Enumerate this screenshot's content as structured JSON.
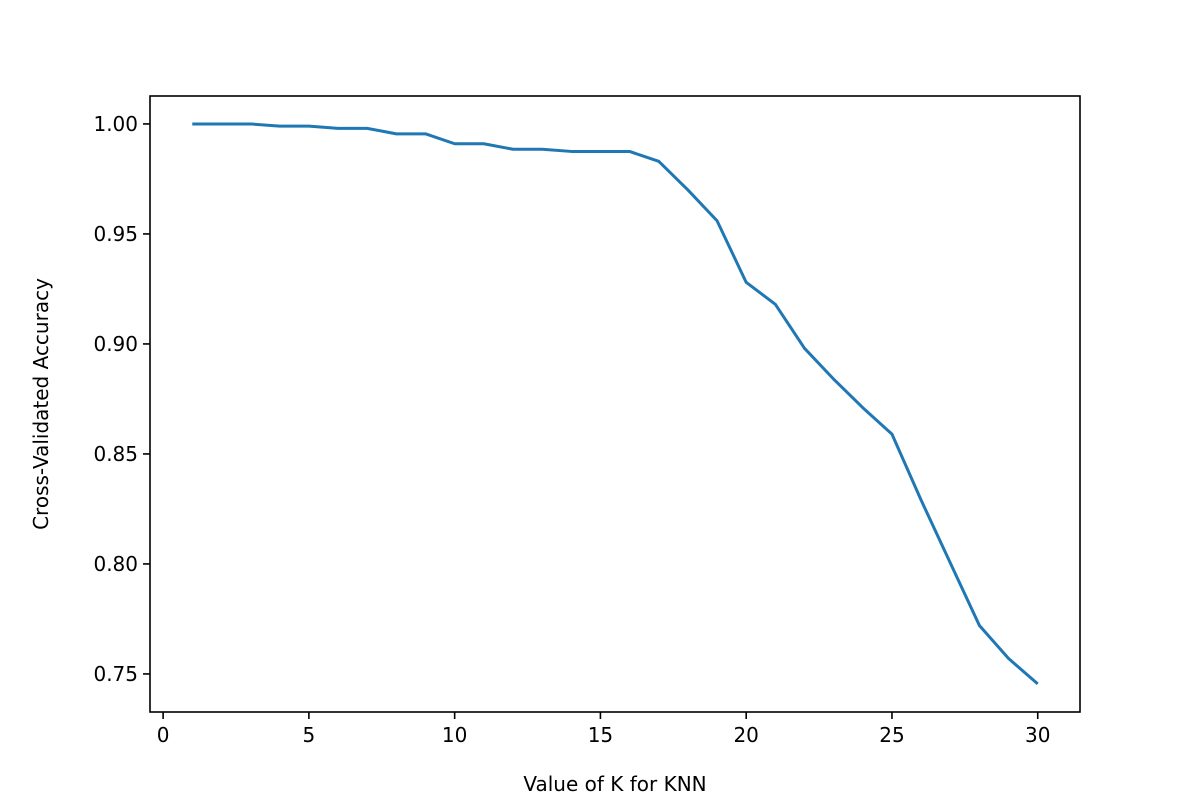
{
  "chart_data": {
    "type": "line",
    "title": "",
    "xlabel": "Value of K for KNN",
    "ylabel": "Cross-Validated Accuracy",
    "xlim": [
      -0.45,
      31.45
    ],
    "ylim": [
      0.7327,
      1.0127
    ],
    "xticks": [
      0,
      5,
      10,
      15,
      20,
      25,
      30
    ],
    "xtick_labels": [
      "0",
      "5",
      "10",
      "15",
      "20",
      "25",
      "30"
    ],
    "yticks": [
      0.75,
      0.8,
      0.85,
      0.9,
      0.95,
      1.0
    ],
    "ytick_labels": [
      "0.75",
      "0.80",
      "0.85",
      "0.90",
      "0.95",
      "1.00"
    ],
    "grid": false,
    "legend": "none",
    "series": [
      {
        "color": "#1f77b4",
        "x": [
          1,
          2,
          3,
          4,
          5,
          6,
          7,
          8,
          9,
          10,
          11,
          12,
          13,
          14,
          15,
          16,
          17,
          18,
          19,
          20,
          21,
          22,
          23,
          24,
          25,
          26,
          27,
          28,
          29,
          30
        ],
        "y": [
          1.0,
          1.0,
          1.0,
          0.999,
          0.999,
          0.998,
          0.998,
          0.9955,
          0.9955,
          0.991,
          0.991,
          0.9885,
          0.9885,
          0.9875,
          0.9875,
          0.9875,
          0.983,
          0.97,
          0.956,
          0.928,
          0.918,
          0.898,
          0.884,
          0.871,
          0.859,
          0.829,
          0.8005,
          0.772,
          0.757,
          0.7455
        ]
      }
    ]
  }
}
